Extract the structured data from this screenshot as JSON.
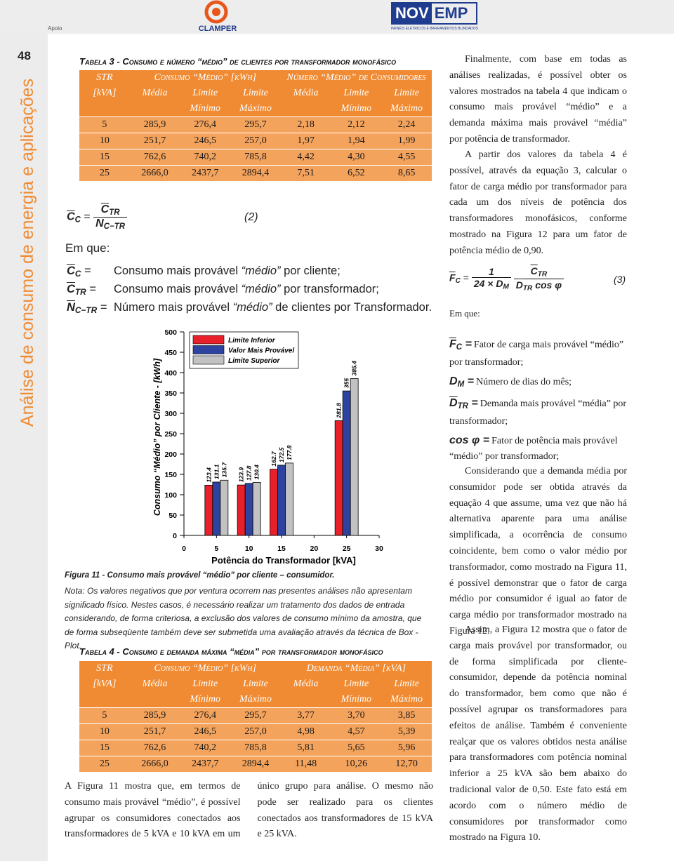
{
  "header": {
    "apoio": "Apoio",
    "logo1": "CLAMPER",
    "logo2a": "NOV",
    "logo2b": "EMP",
    "logo2_sub": "PAINÉIS ELÉTRICOS E BARRAMENTOS BLINDADOS"
  },
  "page_number": "48",
  "sidebar": "Análise de consumo de energia e aplicações",
  "table3": {
    "title": "Tabela 3 - Consumo e número “médio” de clientes por transformador monofásico",
    "head": [
      [
        "STR",
        "Consumo “Médio” [kWh]",
        "Número “Médio” de Consumidores"
      ],
      [
        "[kVA]",
        "Média",
        "Limite",
        "Limite",
        "Média",
        "Limite",
        "Limite"
      ],
      [
        "Mínimo",
        "Máximo",
        "Mínimo",
        "Máximo"
      ]
    ],
    "rows": [
      [
        "5",
        "285,9",
        "276,4",
        "295,7",
        "2,18",
        "2,12",
        "2,24"
      ],
      [
        "10",
        "251,7",
        "246,5",
        "257,0",
        "1,97",
        "1,94",
        "1,99"
      ],
      [
        "15",
        "762,6",
        "740,2",
        "785,8",
        "4,42",
        "4,30",
        "4,55"
      ],
      [
        "25",
        "2666,0",
        "2437,7",
        "2894,4",
        "7,51",
        "6,52",
        "8,65"
      ]
    ]
  },
  "equation2": {
    "lhs": "C",
    "lhs_sub": "C",
    "equals": "=",
    "num": "C",
    "num_sub": "TR",
    "den": "N",
    "den_sub": "C−TR",
    "number": "(2)"
  },
  "em_que": "Em que:",
  "definitions": [
    {
      "symbol": "C",
      "sub": "C",
      "equals": "=",
      "before": "Consumo mais provável ",
      "em": "“médio”",
      "after": " por cliente;"
    },
    {
      "symbol": "C",
      "sub": "TR",
      "equals": "=",
      "before": "Consumo mais provável ",
      "em": "“médio”",
      "after": " por transformador;"
    },
    {
      "symbol": "N",
      "sub": "C−TR",
      "equals": "=",
      "before": "Número mais provável ",
      "em": "“médio”",
      "after": " de clientes por Transformador."
    }
  ],
  "chart_data": {
    "type": "bar",
    "x": [
      5,
      10,
      15,
      25
    ],
    "xlim": [
      0,
      30
    ],
    "xticks": [
      0,
      5,
      10,
      15,
      20,
      25,
      30
    ],
    "ylim": [
      0,
      500
    ],
    "yticks": [
      0,
      50,
      100,
      150,
      200,
      250,
      300,
      350,
      400,
      450,
      500
    ],
    "xlabel": "Potência do Transformador [kVA]",
    "ylabel": "Consumo “Médio” por Cliente - [kWh]",
    "legend": "top-left",
    "series": [
      {
        "name": "Limite Inferior",
        "color": "#e8202a",
        "values": [
          123.4,
          123.9,
          162.7,
          281.8
        ]
      },
      {
        "name": "Valor Mais Provável",
        "color": "#2e43a0",
        "values": [
          131.1,
          127.8,
          172.5,
          355
        ]
      },
      {
        "name": "Limite Superior",
        "color": "#c2c2c2",
        "values": [
          135.7,
          130.4,
          177.8,
          385.4
        ]
      }
    ]
  },
  "figure_caption": "Figura 11 - Consumo mais provável “médio” por cliente – consumidor.",
  "note": "Nota: Os valores negativos que por ventura ocorrem nas presentes análises não apresentam significado físico. Nestes casos, é necessário realizar um tratamento dos dados de entrada considerando, de forma criteriosa, a exclusão dos valores de consumo mínimo da amostra, que de forma subseqüente também deve ser submetida uma avaliação através da técnica de Box - Plot.",
  "table4": {
    "title": "Tabela 4 - Consumo e demanda máxima “média” por transformador monofásico",
    "head": [
      [
        "STR",
        "Consumo “Médio” [kWh]",
        "Demanda “Média” [kVA]"
      ],
      [
        "[kVA]",
        "Média",
        "Limite",
        "Limite",
        "Média",
        "Limite",
        "Limite"
      ],
      [
        "Mínimo",
        "Máximo",
        "Mínimo",
        "Máximo"
      ]
    ],
    "rows": [
      [
        "5",
        "285,9",
        "276,4",
        "295,7",
        "3,77",
        "3,70",
        "3,85"
      ],
      [
        "10",
        "251,7",
        "246,5",
        "257,0",
        "4,98",
        "4,57",
        "5,39"
      ],
      [
        "15",
        "762,6",
        "740,2",
        "785,8",
        "5,81",
        "5,65",
        "5,96"
      ],
      [
        "25",
        "2666,0",
        "2437,7",
        "2894,4",
        "11,48",
        "10,26",
        "12,70"
      ]
    ]
  },
  "body_left": "A Figura 11 mostra que, em termos de consumo mais provável “médio”, é possível agrupar os consumidores conectados aos transformadores de 5 kVA e 10 kVA em um único grupo para análise. O mesmo não pode ser realizado para os clientes conectados aos transformadores de 15 kVA e 25 kVA.",
  "right_column": {
    "p1": "Finalmente, com base em todas as análises realizadas, é possível obter os valores mostrados na tabela 4 que indicam o consumo mais provável “médio” e a demanda máxima mais provável “média” por potência de transformador.",
    "p2": "A partir dos valores da tabela 4 é possível, através da equação 3, calcular o fator de carga médio por transformador para cada um dos níveis de potência dos transformadores monofásicos, conforme mostrado na Figura 12 para um fator de potência médio de 0,90.",
    "equation3": {
      "lhs": "F",
      "lhs_sub": "C",
      "equals": "=",
      "num1": "1",
      "den1": "24 × D",
      "den1_sub": "M",
      "num2": "C",
      "num2_sub": "TR",
      "den2": "D",
      "den2_sub": "TR",
      "den2_rest": " cos φ",
      "number": "(3)"
    },
    "em_que": "Em que:",
    "definitions": [
      {
        "symbol": "F",
        "sub": "C",
        "equals": "=",
        "text": "Fator de carga mais provável “médio” por transformador;"
      },
      {
        "symbol": "D",
        "sub": "M",
        "equals": "=",
        "text": "Número de dias do mês;"
      },
      {
        "symbol": "D",
        "sub": "TR",
        "equals": "=",
        "text": "Demanda mais provável “média” por transformador;"
      },
      {
        "symbol": "cos φ",
        "equals": "=",
        "text": "Fator de potência mais provável “médio” por transformador;"
      }
    ],
    "p3": "Considerando que a demanda média por consumidor pode ser obtida através da equação 4 que assume, uma vez que não há alternativa aparente para uma análise simplificada, a ocorrência de consumo coincidente, bem como o valor médio por transformador, como mostrado na Figura 11, é possível demonstrar que o fator de carga médio por consumidor é igual ao fator de carga médio por transformador mostrado na Figura 12.",
    "p4": "Assim, a Figura 12 mostra que o fator de carga mais provável por transformador, ou de forma simplificada por cliente-consumidor, depende da potência nominal do transformador, bem como que não é possível agrupar os transformadores para efeitos de análise. Também é conveniente realçar que os valores obtidos nesta análise para transformadores com potência nominal inferior a 25 kVA são bem abaixo do tradicional valor de 0,50. Este fato está em acordo com o número médio de consumidores por transformador como mostrado na Figura 10."
  }
}
